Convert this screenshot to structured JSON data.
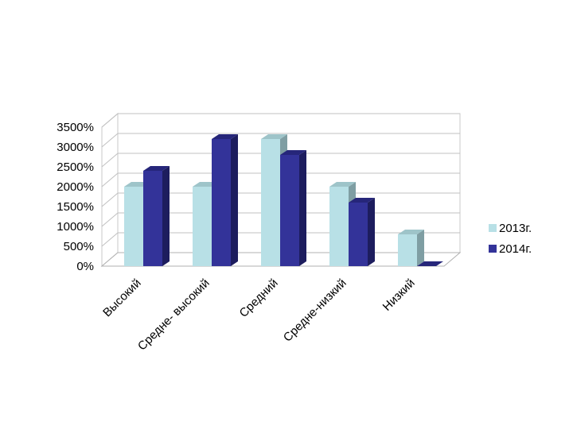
{
  "chart_data": {
    "type": "bar",
    "categories": [
      "Высокий",
      "Средне- высокий",
      "Средний",
      "Средне-низкий",
      "Низкий"
    ],
    "series": [
      {
        "name": "2013г.",
        "values": [
          2000,
          2000,
          3200,
          2000,
          800
        ],
        "color": "#b8e0e6",
        "side_color": "#7f9ea3",
        "top_color": "#9ec4c9"
      },
      {
        "name": "2014г.",
        "values": [
          2400,
          3200,
          2800,
          1600,
          0
        ],
        "color": "#333399",
        "side_color": "#1d1d5e",
        "top_color": "#26267a"
      }
    ],
    "yticks": [
      "0%",
      "500%",
      "1000%",
      "1500%",
      "2000%",
      "2500%",
      "3000%",
      "3500%"
    ],
    "ylim": [
      0,
      3500
    ],
    "grid": true,
    "legend": "right",
    "title": "",
    "xlabel": "",
    "ylabel": ""
  }
}
